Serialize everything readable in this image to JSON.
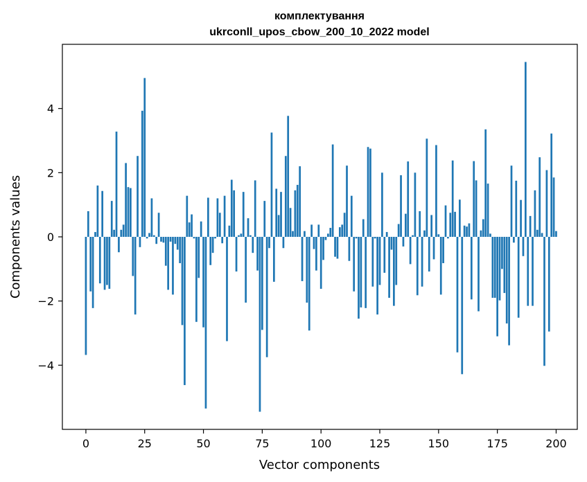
{
  "chart_data": {
    "type": "bar",
    "title_line1": "комплектування",
    "title_line2": "ukrconll_upos_cbow_200_10_2022 model",
    "xlabel": "Vector components",
    "ylabel": "Components values",
    "xlim": [
      -10,
      209
    ],
    "ylim": [
      -6.0,
      6.0
    ],
    "x_ticks": [
      0,
      25,
      50,
      75,
      100,
      125,
      150,
      175,
      200
    ],
    "x_tick_labels": [
      "0",
      "25",
      "50",
      "75",
      "100",
      "125",
      "150",
      "175",
      "200"
    ],
    "y_ticks": [
      -4,
      -2,
      0,
      2,
      4
    ],
    "y_tick_labels": [
      "−4",
      "−2",
      "0",
      "2",
      "4"
    ],
    "bar_color": "#1f77b4",
    "grid": false,
    "values": [
      -3.68,
      0.8,
      -1.7,
      -2.22,
      0.15,
      1.6,
      -1.45,
      1.43,
      -1.65,
      -1.5,
      -1.62,
      1.12,
      0.22,
      3.28,
      -0.48,
      0.22,
      0.38,
      2.3,
      1.55,
      1.52,
      -1.22,
      -2.42,
      2.52,
      -0.32,
      3.93,
      4.95,
      -0.05,
      0.12,
      1.2,
      0.05,
      -0.22,
      0.75,
      -0.15,
      -0.18,
      -0.9,
      -1.65,
      -0.15,
      -1.8,
      -0.22,
      -0.4,
      -0.82,
      -2.75,
      -4.62,
      1.28,
      0.45,
      0.7,
      -0.05,
      -2.65,
      -1.28,
      0.48,
      -2.82,
      -5.35,
      1.22,
      -0.88,
      -0.5,
      -0.05,
      1.2,
      0.75,
      -0.2,
      1.28,
      -3.25,
      0.35,
      1.78,
      1.45,
      -1.08,
      0.05,
      0.1,
      1.4,
      -2.05,
      0.58,
      0.05,
      -0.5,
      1.76,
      -1.05,
      -5.45,
      -2.9,
      1.12,
      -3.75,
      -0.35,
      3.25,
      -1.4,
      1.5,
      0.68,
      1.4,
      -0.35,
      2.52,
      3.77,
      0.9,
      0.18,
      1.45,
      1.62,
      2.2,
      -1.38,
      0.18,
      -2.05,
      -2.92,
      0.38,
      -0.38,
      -1.05,
      0.38,
      -1.62,
      -0.72,
      -0.1,
      0.1,
      0.28,
      2.88,
      -0.62,
      -0.68,
      0.3,
      0.38,
      0.75,
      2.22,
      -0.75,
      1.28,
      -1.7,
      -0.05,
      -2.55,
      -2.2,
      0.55,
      -2.22,
      2.8,
      2.75,
      -1.55,
      -0.05,
      -2.42,
      -1.5,
      2.0,
      -1.12,
      0.15,
      -1.9,
      -0.4,
      -2.15,
      -1.5,
      0.4,
      1.92,
      -0.3,
      0.72,
      2.35,
      -0.85,
      0.05,
      2.0,
      -1.82,
      0.8,
      -1.55,
      0.2,
      3.06,
      -1.08,
      0.68,
      -0.7,
      2.86,
      0.08,
      -1.8,
      -0.82,
      0.98,
      -0.05,
      0.75,
      2.38,
      0.78,
      -3.6,
      1.16,
      -4.28,
      0.35,
      0.32,
      0.42,
      -1.95,
      2.36,
      1.76,
      -2.32,
      0.2,
      0.55,
      3.35,
      1.66,
      0.1,
      -1.9,
      -1.9,
      -3.1,
      -1.98,
      -1.0,
      -1.75,
      -2.7,
      -3.38,
      2.22,
      -0.18,
      1.75,
      -2.52,
      1.15,
      -0.6,
      5.45,
      -2.15,
      0.65,
      -2.15,
      1.45,
      0.22,
      2.48,
      0.12,
      -4.02,
      2.08,
      -2.95,
      3.22,
      1.85,
      0.18
    ]
  }
}
